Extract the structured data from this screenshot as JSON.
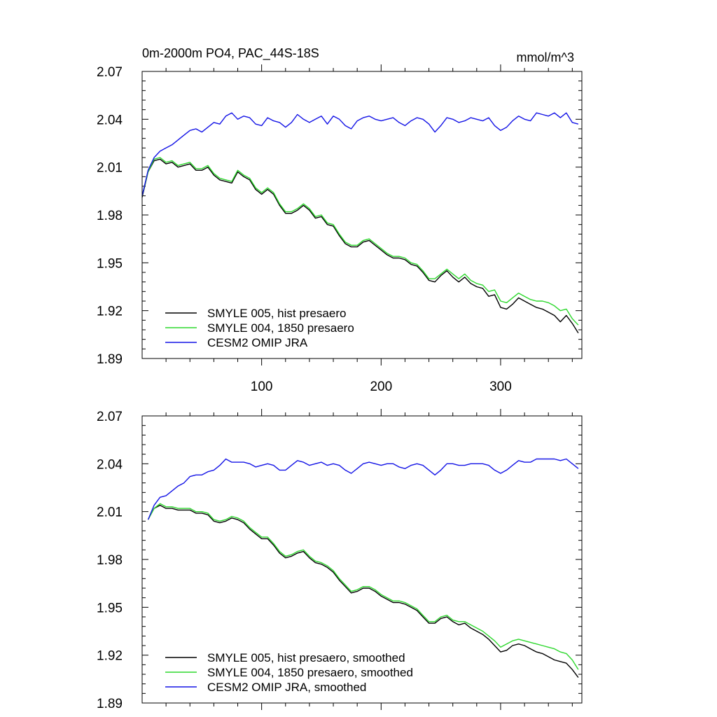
{
  "chart_data": [
    {
      "type": "line",
      "title": "0m-2000m PO4, PAC_44S-18S",
      "units": "mmol/m^3",
      "xlim": [
        0,
        368
      ],
      "ylim": [
        1.89,
        2.07
      ],
      "yticks": [
        1.89,
        1.92,
        1.95,
        1.98,
        2.01,
        2.04,
        2.07
      ],
      "yticklabels": [
        "1.89",
        "1.92",
        "1.95",
        "1.98",
        "2.01",
        "2.04",
        "2.07"
      ],
      "xticks": [
        100,
        200,
        300
      ],
      "xticklabels": [
        "100",
        "200",
        "300"
      ],
      "legend_position": "bottom-left",
      "series": [
        {
          "name": "SMYLE 005, hist presaero",
          "color": "#000000",
          "x": [
            0,
            5,
            10,
            15,
            20,
            25,
            30,
            35,
            40,
            45,
            50,
            55,
            60,
            65,
            70,
            75,
            80,
            85,
            90,
            95,
            100,
            105,
            110,
            115,
            120,
            125,
            130,
            135,
            140,
            145,
            150,
            155,
            160,
            165,
            170,
            175,
            180,
            185,
            190,
            195,
            200,
            205,
            210,
            215,
            220,
            225,
            230,
            235,
            240,
            245,
            250,
            255,
            260,
            265,
            270,
            275,
            280,
            285,
            290,
            295,
            300,
            305,
            310,
            315,
            320,
            325,
            330,
            335,
            340,
            345,
            350,
            355,
            360,
            365
          ],
          "y": [
            1.991,
            2.007,
            2.014,
            2.015,
            2.012,
            2.013,
            2.01,
            2.011,
            2.012,
            2.008,
            2.008,
            2.01,
            2.005,
            2.002,
            2.001,
            2.0,
            2.007,
            2.004,
            2.002,
            1.996,
            1.993,
            1.996,
            1.993,
            1.986,
            1.981,
            1.981,
            1.983,
            1.986,
            1.983,
            1.978,
            1.979,
            1.974,
            1.973,
            1.967,
            1.962,
            1.96,
            1.96,
            1.963,
            1.964,
            1.961,
            1.958,
            1.955,
            1.953,
            1.953,
            1.952,
            1.949,
            1.948,
            1.944,
            1.939,
            1.938,
            1.942,
            1.945,
            1.941,
            1.938,
            1.941,
            1.937,
            1.935,
            1.934,
            1.929,
            1.93,
            1.922,
            1.921,
            1.924,
            1.928,
            1.926,
            1.924,
            1.922,
            1.921,
            1.919,
            1.917,
            1.913,
            1.917,
            1.912,
            1.906
          ]
        },
        {
          "name": "SMYLE 004, 1850 presaero",
          "color": "#2ed82e",
          "x": [
            0,
            5,
            10,
            15,
            20,
            25,
            30,
            35,
            40,
            45,
            50,
            55,
            60,
            65,
            70,
            75,
            80,
            85,
            90,
            95,
            100,
            105,
            110,
            115,
            120,
            125,
            130,
            135,
            140,
            145,
            150,
            155,
            160,
            165,
            170,
            175,
            180,
            185,
            190,
            195,
            200,
            205,
            210,
            215,
            220,
            225,
            230,
            235,
            240,
            245,
            250,
            255,
            260,
            265,
            270,
            275,
            280,
            285,
            290,
            295,
            300,
            305,
            310,
            315,
            320,
            325,
            330,
            335,
            340,
            345,
            350,
            355,
            360,
            365
          ],
          "y": [
            1.992,
            2.007,
            2.015,
            2.016,
            2.013,
            2.014,
            2.011,
            2.012,
            2.013,
            2.009,
            2.009,
            2.011,
            2.006,
            2.003,
            2.002,
            2.001,
            2.008,
            2.005,
            2.003,
            1.997,
            1.994,
            1.997,
            1.994,
            1.987,
            1.982,
            1.982,
            1.984,
            1.987,
            1.984,
            1.979,
            1.98,
            1.975,
            1.974,
            1.968,
            1.963,
            1.961,
            1.961,
            1.964,
            1.965,
            1.962,
            1.959,
            1.956,
            1.954,
            1.954,
            1.953,
            1.95,
            1.949,
            1.945,
            1.94,
            1.94,
            1.943,
            1.946,
            1.943,
            1.94,
            1.943,
            1.939,
            1.937,
            1.936,
            1.932,
            1.933,
            1.926,
            1.925,
            1.928,
            1.931,
            1.929,
            1.927,
            1.926,
            1.926,
            1.925,
            1.923,
            1.92,
            1.921,
            1.915,
            1.911
          ]
        },
        {
          "name": "CESM2 OMIP JRA",
          "color": "#1414e6",
          "x": [
            0,
            5,
            10,
            15,
            20,
            25,
            30,
            35,
            40,
            45,
            50,
            55,
            60,
            65,
            70,
            75,
            80,
            85,
            90,
            95,
            100,
            105,
            110,
            115,
            120,
            125,
            130,
            135,
            140,
            145,
            150,
            155,
            160,
            165,
            170,
            175,
            180,
            185,
            190,
            195,
            200,
            205,
            210,
            215,
            220,
            225,
            230,
            235,
            240,
            245,
            250,
            255,
            260,
            265,
            270,
            275,
            280,
            285,
            290,
            295,
            300,
            305,
            310,
            315,
            320,
            325,
            330,
            335,
            340,
            345,
            350,
            355,
            360,
            365
          ],
          "y": [
            1.992,
            2.008,
            2.016,
            2.02,
            2.022,
            2.024,
            2.027,
            2.03,
            2.033,
            2.034,
            2.032,
            2.035,
            2.038,
            2.037,
            2.042,
            2.044,
            2.04,
            2.042,
            2.041,
            2.037,
            2.036,
            2.041,
            2.039,
            2.038,
            2.035,
            2.038,
            2.043,
            2.04,
            2.038,
            2.04,
            2.042,
            2.037,
            2.042,
            2.04,
            2.036,
            2.034,
            2.039,
            2.041,
            2.042,
            2.04,
            2.039,
            2.04,
            2.041,
            2.038,
            2.036,
            2.039,
            2.041,
            2.04,
            2.037,
            2.032,
            2.036,
            2.041,
            2.04,
            2.038,
            2.039,
            2.041,
            2.04,
            2.039,
            2.041,
            2.036,
            2.033,
            2.035,
            2.039,
            2.042,
            2.04,
            2.039,
            2.044,
            2.043,
            2.042,
            2.044,
            2.041,
            2.044,
            2.038,
            2.037
          ]
        }
      ]
    },
    {
      "type": "line",
      "title": "",
      "units": "",
      "xlim": [
        0,
        368
      ],
      "ylim": [
        1.89,
        2.07
      ],
      "yticks": [
        1.89,
        1.92,
        1.95,
        1.98,
        2.01,
        2.04,
        2.07
      ],
      "yticklabels": [
        "1.89",
        "1.92",
        "1.95",
        "1.98",
        "2.01",
        "2.04",
        "2.07"
      ],
      "xticks": [
        100,
        200,
        300
      ],
      "xticklabels": [],
      "legend_position": "bottom-left",
      "series": [
        {
          "name": "SMYLE 005, hist presaero, smoothed",
          "color": "#000000",
          "x": [
            5,
            10,
            15,
            20,
            25,
            30,
            35,
            40,
            45,
            50,
            55,
            60,
            65,
            70,
            75,
            80,
            85,
            90,
            95,
            100,
            105,
            110,
            115,
            120,
            125,
            130,
            135,
            140,
            145,
            150,
            155,
            160,
            165,
            170,
            175,
            180,
            185,
            190,
            195,
            200,
            205,
            210,
            215,
            220,
            225,
            230,
            235,
            240,
            245,
            250,
            255,
            260,
            265,
            270,
            275,
            280,
            285,
            290,
            295,
            300,
            305,
            310,
            315,
            320,
            325,
            330,
            335,
            340,
            345,
            350,
            355,
            360,
            365
          ],
          "y": [
            2.005,
            2.012,
            2.014,
            2.012,
            2.012,
            2.011,
            2.011,
            2.011,
            2.009,
            2.009,
            2.008,
            2.004,
            2.003,
            2.004,
            2.006,
            2.005,
            2.003,
            1.999,
            1.996,
            1.993,
            1.993,
            1.989,
            1.984,
            1.981,
            1.982,
            1.984,
            1.985,
            1.981,
            1.978,
            1.977,
            1.975,
            1.972,
            1.967,
            1.963,
            1.959,
            1.96,
            1.962,
            1.962,
            1.96,
            1.957,
            1.955,
            1.953,
            1.953,
            1.952,
            1.95,
            1.948,
            1.944,
            1.94,
            1.94,
            1.943,
            1.944,
            1.941,
            1.939,
            1.94,
            1.937,
            1.935,
            1.933,
            1.93,
            1.926,
            1.922,
            1.923,
            1.926,
            1.927,
            1.926,
            1.924,
            1.922,
            1.921,
            1.919,
            1.917,
            1.916,
            1.915,
            1.911,
            1.906
          ]
        },
        {
          "name": "SMYLE 004, 1850 presaero, smoothed",
          "color": "#2ed82e",
          "x": [
            5,
            10,
            15,
            20,
            25,
            30,
            35,
            40,
            45,
            50,
            55,
            60,
            65,
            70,
            75,
            80,
            85,
            90,
            95,
            100,
            105,
            110,
            115,
            120,
            125,
            130,
            135,
            140,
            145,
            150,
            155,
            160,
            165,
            170,
            175,
            180,
            185,
            190,
            195,
            200,
            205,
            210,
            215,
            220,
            225,
            230,
            235,
            240,
            245,
            250,
            255,
            260,
            265,
            270,
            275,
            280,
            285,
            290,
            295,
            300,
            305,
            310,
            315,
            320,
            325,
            330,
            335,
            340,
            345,
            350,
            355,
            360,
            365
          ],
          "y": [
            2.005,
            2.012,
            2.015,
            2.013,
            2.013,
            2.012,
            2.012,
            2.012,
            2.01,
            2.01,
            2.009,
            2.005,
            2.004,
            2.005,
            2.007,
            2.006,
            2.004,
            2.0,
            1.997,
            1.994,
            1.994,
            1.99,
            1.985,
            1.982,
            1.983,
            1.985,
            1.986,
            1.982,
            1.979,
            1.978,
            1.976,
            1.973,
            1.968,
            1.964,
            1.96,
            1.961,
            1.963,
            1.963,
            1.961,
            1.958,
            1.956,
            1.954,
            1.954,
            1.953,
            1.951,
            1.949,
            1.945,
            1.941,
            1.941,
            1.944,
            1.945,
            1.942,
            1.941,
            1.941,
            1.939,
            1.937,
            1.935,
            1.932,
            1.929,
            1.925,
            1.927,
            1.929,
            1.93,
            1.929,
            1.928,
            1.927,
            1.926,
            1.925,
            1.924,
            1.922,
            1.921,
            1.917,
            1.911
          ]
        },
        {
          "name": "CESM2 OMIP JRA, smoothed",
          "color": "#1414e6",
          "x": [
            5,
            10,
            15,
            20,
            25,
            30,
            35,
            40,
            45,
            50,
            55,
            60,
            65,
            70,
            75,
            80,
            85,
            90,
            95,
            100,
            105,
            110,
            115,
            120,
            125,
            130,
            135,
            140,
            145,
            150,
            155,
            160,
            165,
            170,
            175,
            180,
            185,
            190,
            195,
            200,
            205,
            210,
            215,
            220,
            225,
            230,
            235,
            240,
            245,
            250,
            255,
            260,
            265,
            270,
            275,
            280,
            285,
            290,
            295,
            300,
            305,
            310,
            315,
            320,
            325,
            330,
            335,
            340,
            345,
            350,
            355,
            360,
            365
          ],
          "y": [
            2.005,
            2.014,
            2.019,
            2.02,
            2.023,
            2.026,
            2.028,
            2.032,
            2.033,
            2.033,
            2.035,
            2.036,
            2.039,
            2.043,
            2.041,
            2.041,
            2.041,
            2.04,
            2.038,
            2.039,
            2.04,
            2.039,
            2.036,
            2.036,
            2.039,
            2.042,
            2.041,
            2.039,
            2.04,
            2.041,
            2.039,
            2.04,
            2.039,
            2.036,
            2.034,
            2.037,
            2.04,
            2.041,
            2.04,
            2.039,
            2.04,
            2.04,
            2.038,
            2.037,
            2.039,
            2.04,
            2.039,
            2.036,
            2.033,
            2.036,
            2.04,
            2.04,
            2.039,
            2.039,
            2.04,
            2.04,
            2.04,
            2.039,
            2.036,
            2.034,
            2.036,
            2.039,
            2.042,
            2.041,
            2.041,
            2.043,
            2.043,
            2.043,
            2.043,
            2.042,
            2.043,
            2.04,
            2.037
          ]
        }
      ]
    }
  ]
}
